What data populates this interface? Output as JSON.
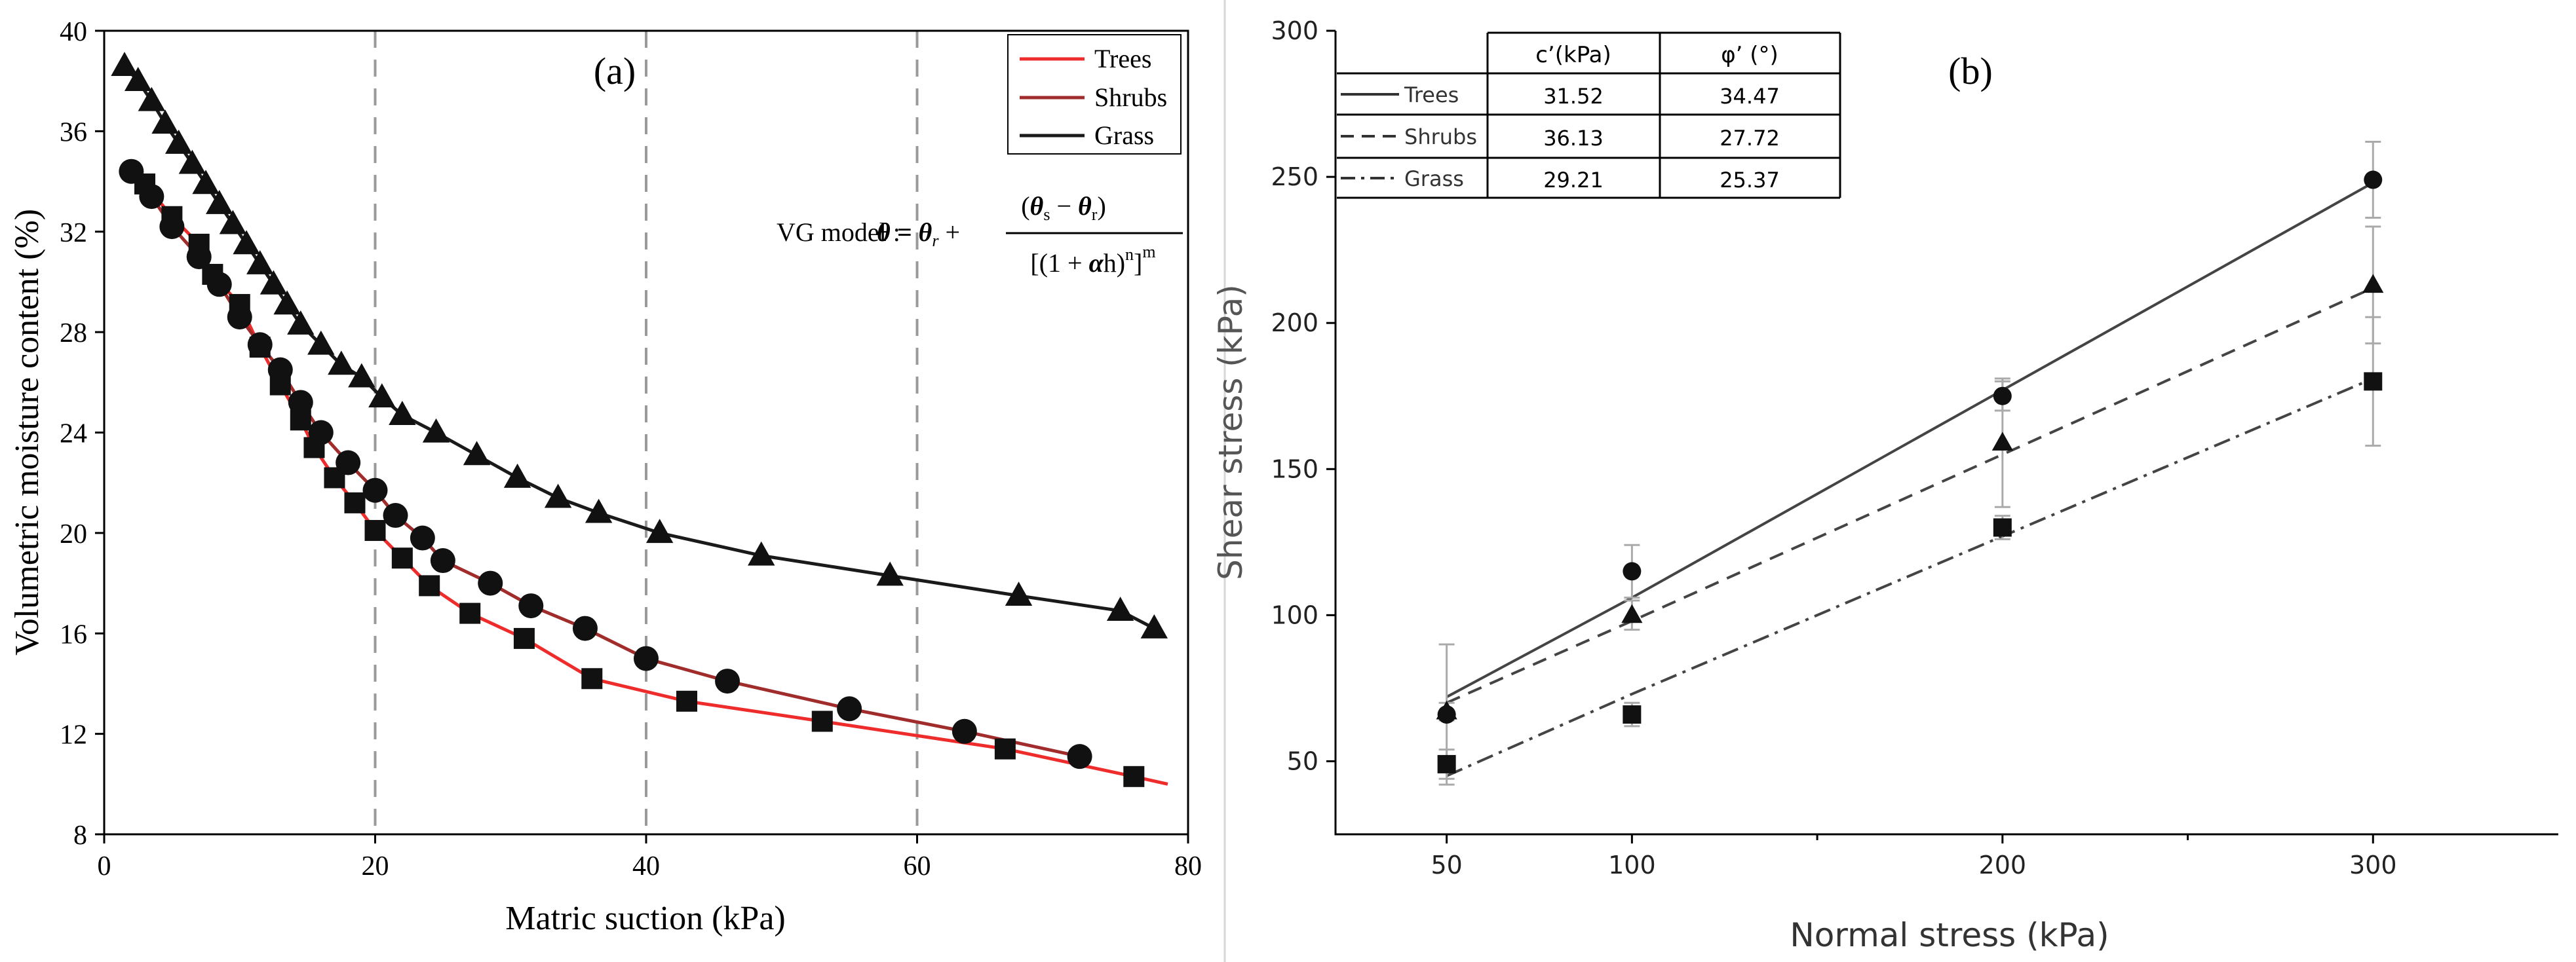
{
  "chart_data": [
    {
      "panel_label": "(a)",
      "type": "scatter",
      "xlabel": "Matric suction (kPa)",
      "ylabel": "Volumetric moisture content (%)",
      "xlim": [
        0,
        80
      ],
      "ylim": [
        8,
        40
      ],
      "xticks": [
        "0",
        "20",
        "40",
        "60",
        "80"
      ],
      "yticks": [
        "8",
        "12",
        "16",
        "20",
        "24",
        "28",
        "32",
        "36",
        "40"
      ],
      "reference_lines_x": [
        20,
        40,
        60
      ],
      "model_label": "VG model :",
      "legend": [
        "Trees",
        "Shrubs",
        "Grass"
      ],
      "series": [
        {
          "name": "Trees",
          "marker": "square",
          "line_color": "#ee2c2c",
          "x": [
            3,
            5,
            7,
            8,
            10,
            11.5,
            13,
            14.5,
            15.5,
            17,
            18.5,
            20,
            22,
            24,
            27,
            31,
            36,
            43,
            53,
            66.5,
            76
          ],
          "y": [
            33.9,
            32.6,
            31.5,
            30.3,
            29.1,
            27.4,
            25.9,
            24.5,
            23.4,
            22.2,
            21.2,
            20.1,
            19.0,
            17.9,
            16.8,
            15.8,
            14.2,
            13.3,
            12.5,
            11.4,
            10.3
          ]
        },
        {
          "name": "Shrubs",
          "marker": "circle",
          "line_color": "#a02c2c",
          "x": [
            2,
            3.5,
            5,
            7,
            8.5,
            10,
            11.5,
            13,
            14.5,
            16,
            18,
            20,
            21.5,
            23.5,
            25,
            28.5,
            31.5,
            35.5,
            40,
            46,
            55,
            63.5,
            72
          ],
          "y": [
            34.4,
            33.4,
            32.2,
            31.0,
            29.9,
            28.6,
            27.5,
            26.5,
            25.2,
            24.0,
            22.8,
            21.7,
            20.7,
            19.8,
            18.9,
            18.0,
            17.1,
            16.2,
            15.0,
            14.1,
            13.0,
            12.1,
            11.1
          ]
        },
        {
          "name": "Grass",
          "marker": "triangle",
          "line_color": "#1a1a1a",
          "x": [
            1.5,
            2.5,
            3.5,
            4.5,
            5.5,
            6.5,
            7.5,
            8.5,
            9.5,
            10.5,
            11.5,
            12.5,
            13.5,
            14.5,
            16,
            17.5,
            19,
            20.5,
            22,
            24.5,
            27.5,
            30.5,
            33.5,
            36.5,
            41,
            48.5,
            58,
            67.5,
            75,
            77.5
          ],
          "y": [
            38.6,
            38.0,
            37.2,
            36.3,
            35.5,
            34.7,
            33.9,
            33.1,
            32.3,
            31.5,
            30.7,
            29.9,
            29.1,
            28.3,
            27.5,
            26.7,
            26.2,
            25.4,
            24.7,
            24.0,
            23.1,
            22.2,
            21.4,
            20.8,
            20.0,
            19.1,
            18.3,
            17.5,
            16.9,
            16.2
          ]
        }
      ]
    },
    {
      "panel_label": "(b)",
      "type": "scatter",
      "xlabel": "Normal stress (kPa)",
      "ylabel": "Shear stress (kPa)",
      "xlim": [
        20,
        350
      ],
      "ylim": [
        25,
        300
      ],
      "xticks": [
        "50",
        "100",
        "200",
        "300"
      ],
      "yticks": [
        "50",
        "100",
        "150",
        "200",
        "250",
        "300"
      ],
      "table": {
        "headers": [
          "",
          "c’(kPa)",
          "φ’ (°)"
        ],
        "rows": [
          {
            "name": "Trees",
            "c": "31.52",
            "phi": "34.47",
            "dash": "solid"
          },
          {
            "name": "Shrubs",
            "c": "36.13",
            "phi": "27.72",
            "dash": "dashed"
          },
          {
            "name": "Grass",
            "c": "29.21",
            "phi": "25.37",
            "dash": "dashdot"
          }
        ]
      },
      "series": [
        {
          "name": "Trees",
          "marker": "circle",
          "x": [
            50,
            100,
            200,
            300
          ],
          "y": [
            66,
            115,
            175,
            249
          ],
          "err": [
            24,
            9,
            5,
            13
          ],
          "fit_y": [
            72,
            106,
            177,
            248
          ]
        },
        {
          "name": "Shrubs",
          "marker": "triangle",
          "x": [
            50,
            100,
            200,
            300
          ],
          "y": [
            67,
            100,
            159,
            213
          ],
          "err": [
            3,
            5,
            22,
            20
          ],
          "fit_y": [
            70,
            98,
            155,
            212
          ]
        },
        {
          "name": "Grass",
          "marker": "square",
          "x": [
            50,
            100,
            200,
            300
          ],
          "y": [
            49,
            66,
            130,
            180
          ],
          "err": [
            5,
            4,
            4,
            22
          ],
          "fit_y": [
            45,
            73,
            127,
            181
          ]
        }
      ]
    }
  ]
}
